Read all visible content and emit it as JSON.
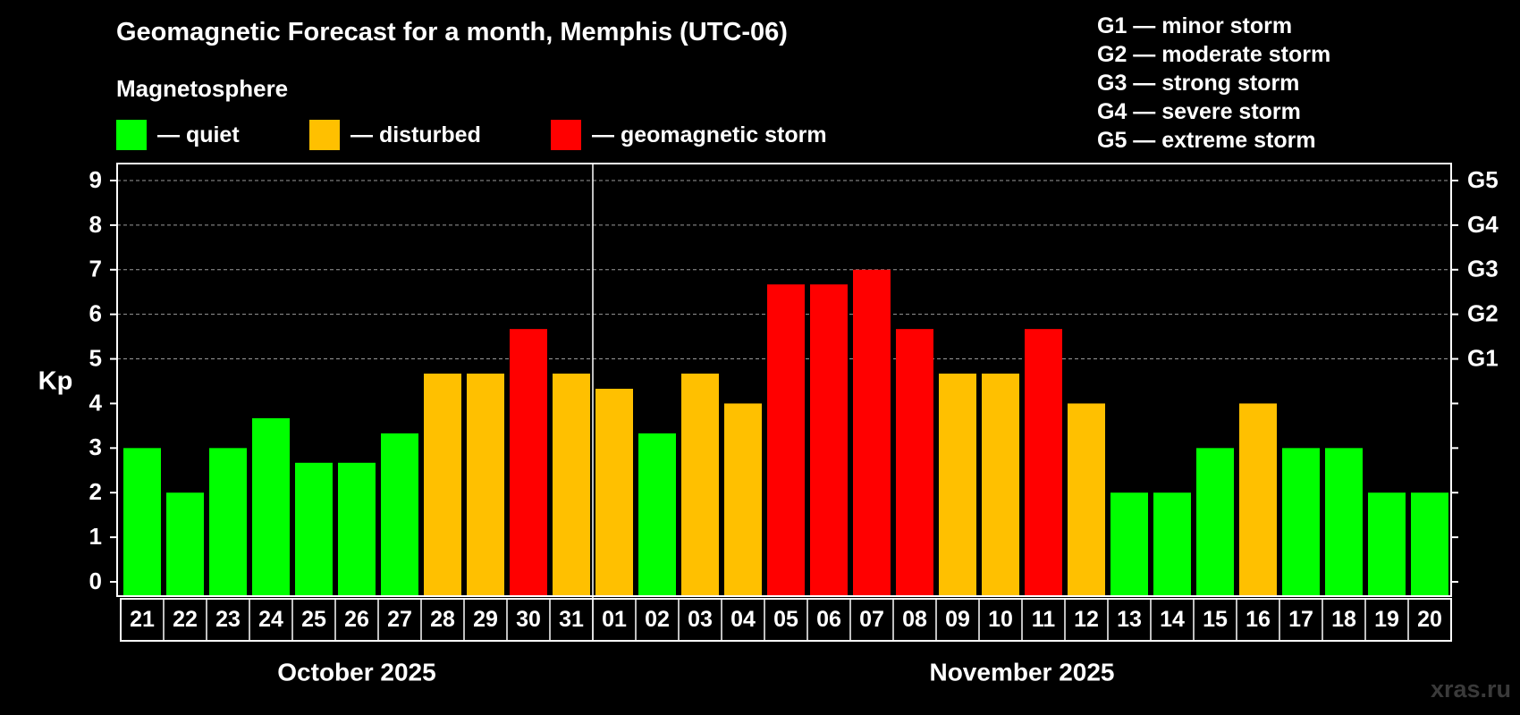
{
  "chart_data": {
    "type": "bar",
    "title": "Geomagnetic Forecast for a month, Memphis (UTC-06)",
    "subtitle": "Magnetosphere",
    "ylabel": "Kp",
    "ylim": [
      0,
      9
    ],
    "yticks": [
      "0",
      "1",
      "2",
      "3",
      "4",
      "5",
      "6",
      "7",
      "8",
      "9"
    ],
    "right_ticks": [
      {
        "kp": 5,
        "label": "G1"
      },
      {
        "kp": 6,
        "label": "G2"
      },
      {
        "kp": 7,
        "label": "G3"
      },
      {
        "kp": 8,
        "label": "G4"
      },
      {
        "kp": 9,
        "label": "G5"
      }
    ],
    "grid": "horizontal dashed at Kp 5-9",
    "categories": [
      "21",
      "22",
      "23",
      "24",
      "25",
      "26",
      "27",
      "28",
      "29",
      "30",
      "31",
      "01",
      "02",
      "03",
      "04",
      "05",
      "06",
      "07",
      "08",
      "09",
      "10",
      "11",
      "12",
      "13",
      "14",
      "15",
      "16",
      "17",
      "18",
      "19",
      "20"
    ],
    "values": [
      3,
      2,
      3,
      3.67,
      2.67,
      2.67,
      3.33,
      4.67,
      4.67,
      5.67,
      4.67,
      4.33,
      3.33,
      4.67,
      4,
      6.67,
      6.67,
      7,
      5.67,
      4.67,
      4.67,
      5.67,
      4,
      2,
      2,
      3,
      4,
      3,
      3,
      2,
      2
    ],
    "levels": [
      "quiet",
      "quiet",
      "quiet",
      "quiet",
      "quiet",
      "quiet",
      "quiet",
      "disturbed",
      "disturbed",
      "storm",
      "disturbed",
      "disturbed",
      "quiet",
      "disturbed",
      "disturbed",
      "storm",
      "storm",
      "storm",
      "storm",
      "disturbed",
      "disturbed",
      "storm",
      "disturbed",
      "quiet",
      "quiet",
      "quiet",
      "disturbed",
      "quiet",
      "quiet",
      "quiet",
      "quiet"
    ],
    "months": [
      {
        "label": "October 2025",
        "start": 0,
        "count": 11
      },
      {
        "label": "November 2025",
        "start": 11,
        "count": 20
      }
    ],
    "legend": [
      {
        "key": "quiet",
        "label": "— quiet",
        "color": "#00ff00"
      },
      {
        "key": "disturbed",
        "label": "— disturbed",
        "color": "#ffc000"
      },
      {
        "key": "storm",
        "label": "— geomagnetic storm",
        "color": "#ff0000"
      }
    ],
    "g_scale": [
      "G1 — minor storm",
      "G2 — moderate storm",
      "G3 — strong storm",
      "G4 — severe storm",
      "G5 — extreme storm"
    ]
  },
  "watermark": "xras.ru"
}
